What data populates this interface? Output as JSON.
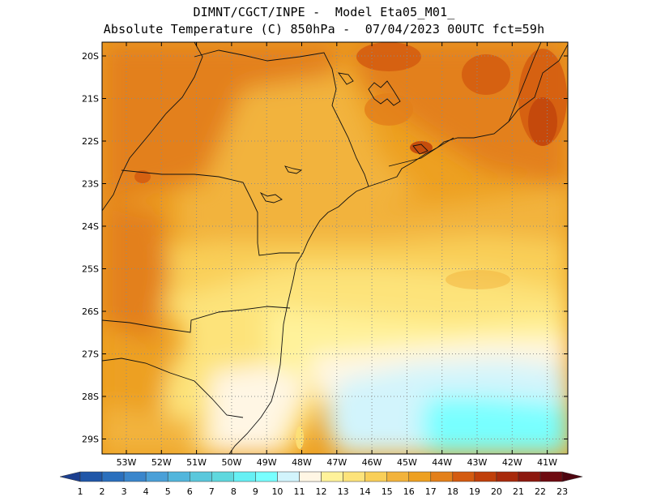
{
  "header": {
    "line1": "DIMNT/CGCT/INPE -  Model Eta05_M01_",
    "line2": "Absolute Temperature (C) 850hPa -  07/04/2023 00UTC fct=59h"
  },
  "map": {
    "lat_labels": [
      "20S",
      "21S",
      "22S",
      "23S",
      "24S",
      "25S",
      "26S",
      "27S",
      "28S",
      "29S"
    ],
    "lon_labels": [
      "53W",
      "52W",
      "51W",
      "50W",
      "49W",
      "48W",
      "47W",
      "46W",
      "45W",
      "44W",
      "43W",
      "42W",
      "41W"
    ],
    "grid": true
  },
  "colorbar": {
    "labels": [
      "1",
      "2",
      "3",
      "4",
      "5",
      "6",
      "7",
      "8",
      "9",
      "10",
      "11",
      "12",
      "13",
      "14",
      "15",
      "16",
      "17",
      "18",
      "19",
      "20",
      "21",
      "22",
      "23"
    ],
    "colors": [
      "#1c3f8f",
      "#1f56a8",
      "#2a6fbd",
      "#3a86cc",
      "#4aa0d8",
      "#52b6dc",
      "#5ac8dc",
      "#5fd8de",
      "#66f0f4",
      "#78ffff",
      "#d2f4fc",
      "#fff6e4",
      "#fff29a",
      "#fde37a",
      "#f9cf58",
      "#f2b33c",
      "#eda021",
      "#e3801a",
      "#d45b10",
      "#c03f0a",
      "#a82a0c",
      "#8c180e",
      "#6e0a10",
      "#4e0510"
    ]
  }
}
